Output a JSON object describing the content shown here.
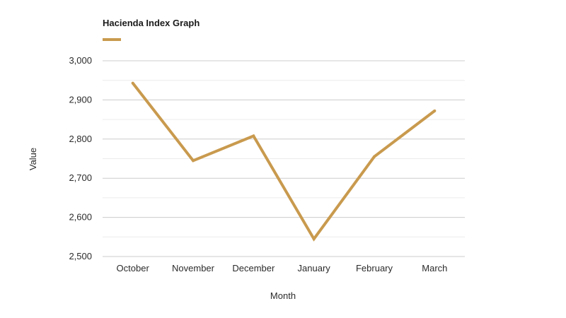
{
  "colors": {
    "series": "#c99a4e",
    "grid_major": "#cccccc",
    "grid_minor": "#ececec",
    "text": "#2b2b2b"
  },
  "chart_data": {
    "type": "line",
    "title": "",
    "xlabel": "Month",
    "ylabel": "Value",
    "categories": [
      "October",
      "November",
      "December",
      "January",
      "February",
      "March"
    ],
    "series": [
      {
        "name": "Hacienda Index Graph",
        "values": [
          2943,
          2745,
          2808,
          2545,
          2755,
          2872
        ]
      }
    ],
    "ylim": [
      2500,
      3000
    ],
    "yticks": [
      2500,
      2600,
      2700,
      2800,
      2900,
      3000
    ],
    "ytick_labels": [
      "2,500",
      "2,600",
      "2,700",
      "2,800",
      "2,900",
      "3,000"
    ],
    "grid": true,
    "minor_grid": true,
    "legend": "top-left"
  }
}
